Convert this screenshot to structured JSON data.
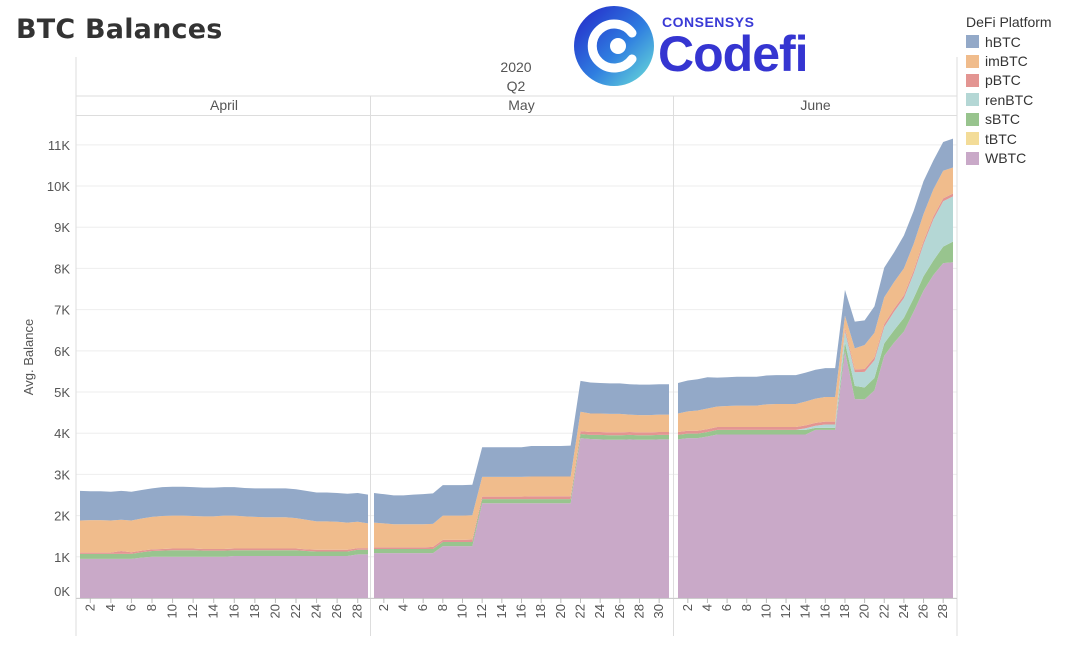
{
  "page": {
    "title": "BTC Balances"
  },
  "logo": {
    "top_text": "CONSENSYS",
    "main_text": "Codefi"
  },
  "colors": {
    "hBTC": "#93a9c8",
    "imBTC": "#f0bc8c",
    "pBTC": "#e39592",
    "renBTC": "#b4d7d5",
    "sBTC": "#98c48e",
    "tBTC": "#f3dc98",
    "WBTC": "#c9a9c8"
  },
  "legend": {
    "title": "DeFi Platform",
    "items": [
      "hBTC",
      "imBTC",
      "pBTC",
      "renBTC",
      "sBTC",
      "tBTC",
      "WBTC"
    ]
  },
  "chart_data": {
    "type": "area",
    "stacked": true,
    "title": "BTC Balances",
    "xlabel": "",
    "ylabel": "Avg. Balance",
    "ylim": [
      0,
      11700
    ],
    "yticks": [
      "0K",
      "1K",
      "2K",
      "3K",
      "4K",
      "5K",
      "6K",
      "7K",
      "8K",
      "9K",
      "10K",
      "11K"
    ],
    "header_year": "2020",
    "header_quarter": "Q2",
    "legend_position": "right",
    "grid": true,
    "stack_order": [
      "WBTC",
      "tBTC",
      "sBTC",
      "renBTC",
      "pBTC",
      "imBTC",
      "hBTC"
    ],
    "panels": [
      {
        "month": "April",
        "days": [
          1,
          2,
          3,
          4,
          5,
          6,
          7,
          8,
          9,
          10,
          11,
          12,
          13,
          14,
          15,
          16,
          17,
          18,
          19,
          20,
          21,
          22,
          23,
          24,
          25,
          26,
          27,
          28,
          29
        ],
        "tick_labels": [
          "2",
          "4",
          "6",
          "8",
          "10",
          "12",
          "14",
          "16",
          "18",
          "20",
          "22",
          "24",
          "26",
          "28"
        ],
        "series": [
          {
            "name": "WBTC",
            "values": [
              950,
              950,
              950,
              950,
              950,
              950,
              980,
              1000,
              1000,
              1000,
              1000,
              1000,
              1000,
              1000,
              1000,
              1020,
              1020,
              1020,
              1020,
              1020,
              1020,
              1020,
              1020,
              1020,
              1020,
              1020,
              1020,
              1060,
              1060
            ]
          },
          {
            "name": "tBTC",
            "values": [
              0,
              0,
              0,
              0,
              0,
              0,
              0,
              0,
              0,
              0,
              0,
              0,
              0,
              0,
              0,
              0,
              0,
              0,
              0,
              0,
              0,
              0,
              0,
              0,
              0,
              0,
              0,
              0,
              0
            ]
          },
          {
            "name": "sBTC",
            "values": [
              120,
              120,
              120,
              120,
              120,
              120,
              130,
              140,
              150,
              160,
              160,
              160,
              150,
              150,
              150,
              140,
              140,
              140,
              140,
              140,
              140,
              140,
              120,
              110,
              110,
              110,
              110,
              110,
              110
            ]
          },
          {
            "name": "renBTC",
            "values": [
              0,
              0,
              0,
              0,
              0,
              0,
              0,
              0,
              0,
              0,
              0,
              0,
              0,
              0,
              0,
              0,
              0,
              0,
              0,
              0,
              0,
              0,
              0,
              0,
              0,
              0,
              0,
              0,
              0
            ]
          },
          {
            "name": "pBTC",
            "values": [
              30,
              30,
              30,
              30,
              70,
              40,
              40,
              40,
              40,
              40,
              40,
              40,
              40,
              40,
              40,
              40,
              40,
              40,
              40,
              40,
              40,
              40,
              40,
              40,
              40,
              40,
              40,
              40,
              40
            ]
          },
          {
            "name": "imBTC",
            "values": [
              780,
              790,
              790,
              780,
              760,
              770,
              780,
              790,
              800,
              800,
              800,
              790,
              790,
              790,
              810,
              800,
              780,
              770,
              760,
              760,
              760,
              740,
              720,
              690,
              690,
              680,
              660,
              640,
              600
            ]
          },
          {
            "name": "hBTC",
            "values": [
              720,
              700,
              700,
              700,
              700,
              700,
              690,
              690,
              700,
              700,
              700,
              700,
              700,
              700,
              690,
              690,
              690,
              690,
              700,
              700,
              700,
              700,
              700,
              700,
              700,
              700,
              700,
              700,
              700
            ]
          }
        ]
      },
      {
        "month": "May",
        "days": [
          1,
          2,
          3,
          4,
          5,
          6,
          7,
          8,
          9,
          10,
          11,
          12,
          13,
          14,
          15,
          16,
          17,
          18,
          19,
          20,
          21,
          22,
          23,
          24,
          25,
          26,
          27,
          28,
          29,
          30,
          31
        ],
        "tick_labels": [
          "2",
          "4",
          "6",
          "8",
          "10",
          "12",
          "14",
          "16",
          "18",
          "20",
          "22",
          "24",
          "26",
          "28",
          "30"
        ],
        "series": [
          {
            "name": "WBTC",
            "values": [
              1090,
              1090,
              1090,
              1090,
              1090,
              1090,
              1090,
              1260,
              1260,
              1260,
              1260,
              2300,
              2300,
              2300,
              2300,
              2300,
              2300,
              2300,
              2300,
              2300,
              2300,
              3880,
              3860,
              3850,
              3840,
              3840,
              3850,
              3840,
              3840,
              3850,
              3850
            ]
          },
          {
            "name": "tBTC",
            "values": [
              0,
              0,
              0,
              0,
              0,
              0,
              0,
              0,
              0,
              0,
              0,
              0,
              0,
              0,
              0,
              0,
              0,
              0,
              0,
              0,
              0,
              0,
              0,
              0,
              0,
              0,
              0,
              0,
              0,
              0,
              0
            ]
          },
          {
            "name": "sBTC",
            "values": [
              100,
              100,
              100,
              100,
              100,
              100,
              100,
              100,
              100,
              100,
              100,
              100,
              100,
              100,
              100,
              100,
              100,
              100,
              100,
              100,
              100,
              100,
              100,
              110,
              110,
              110,
              110,
              110,
              110,
              110,
              110
            ]
          },
          {
            "name": "renBTC",
            "values": [
              0,
              0,
              0,
              0,
              0,
              0,
              0,
              0,
              0,
              0,
              0,
              0,
              0,
              0,
              0,
              0,
              0,
              0,
              0,
              0,
              0,
              0,
              0,
              0,
              0,
              0,
              0,
              0,
              0,
              0,
              0
            ]
          },
          {
            "name": "pBTC",
            "values": [
              40,
              40,
              40,
              40,
              40,
              40,
              50,
              50,
              50,
              50,
              60,
              60,
              60,
              60,
              60,
              60,
              70,
              70,
              70,
              70,
              70,
              70,
              70,
              70,
              70,
              70,
              70,
              70,
              70,
              70,
              70
            ]
          },
          {
            "name": "imBTC",
            "values": [
              600,
              580,
              560,
              560,
              560,
              560,
              560,
              590,
              590,
              590,
              590,
              480,
              480,
              480,
              480,
              480,
              480,
              480,
              480,
              480,
              480,
              470,
              450,
              450,
              450,
              450,
              420,
              420,
              420,
              420,
              420
            ]
          },
          {
            "name": "hBTC",
            "values": [
              720,
              710,
              700,
              700,
              720,
              730,
              740,
              740,
              740,
              740,
              740,
              720,
              720,
              720,
              720,
              720,
              740,
              740,
              740,
              740,
              750,
              750,
              750,
              740,
              740,
              740,
              740,
              740,
              740,
              740,
              740
            ]
          }
        ]
      },
      {
        "month": "June",
        "days": [
          1,
          2,
          3,
          4,
          5,
          6,
          7,
          8,
          9,
          10,
          11,
          12,
          13,
          14,
          15,
          16,
          17,
          18,
          19,
          20,
          21,
          22,
          23,
          24,
          25,
          26,
          27,
          28,
          29
        ],
        "tick_labels": [
          "2",
          "4",
          "6",
          "8",
          "10",
          "12",
          "14",
          "16",
          "18",
          "20",
          "22",
          "24",
          "26",
          "28"
        ],
        "series": [
          {
            "name": "WBTC",
            "values": [
              3850,
              3880,
              3880,
              3920,
              3970,
              3970,
              3970,
              3970,
              3970,
              3970,
              3970,
              3970,
              3970,
              3970,
              4080,
              4080,
              4080,
              6000,
              4830,
              4820,
              5040,
              5880,
              6200,
              6470,
              6950,
              7460,
              7840,
              8130,
              8150
            ]
          },
          {
            "name": "tBTC",
            "values": [
              0,
              0,
              0,
              0,
              0,
              0,
              0,
              0,
              0,
              0,
              0,
              0,
              0,
              0,
              0,
              0,
              0,
              0,
              0,
              0,
              0,
              0,
              0,
              0,
              0,
              0,
              0,
              0,
              0
            ]
          },
          {
            "name": "sBTC",
            "values": [
              110,
              110,
              110,
              110,
              110,
              110,
              110,
              110,
              110,
              110,
              110,
              110,
              110,
              110,
              50,
              50,
              50,
              200,
              320,
              290,
              300,
              300,
              300,
              330,
              330,
              350,
              350,
              400,
              500
            ]
          },
          {
            "name": "renBTC",
            "values": [
              0,
              0,
              0,
              0,
              0,
              0,
              0,
              0,
              0,
              0,
              0,
              0,
              0,
              40,
              50,
              80,
              80,
              280,
              330,
              380,
              430,
              400,
              450,
              480,
              600,
              780,
              1000,
              1100,
              1100
            ]
          },
          {
            "name": "pBTC",
            "values": [
              70,
              70,
              70,
              70,
              70,
              70,
              70,
              70,
              70,
              70,
              70,
              70,
              70,
              70,
              70,
              70,
              70,
              70,
              70,
              70,
              70,
              70,
              70,
              70,
              70,
              70,
              70,
              70,
              70
            ]
          },
          {
            "name": "imBTC",
            "values": [
              450,
              470,
              490,
              500,
              500,
              510,
              520,
              520,
              520,
              550,
              560,
              560,
              560,
              580,
              590,
              600,
              600,
              300,
              510,
              580,
              600,
              650,
              650,
              650,
              650,
              660,
              660,
              670,
              630
            ]
          },
          {
            "name": "hBTC",
            "values": [
              740,
              750,
              760,
              760,
              700,
              700,
              700,
              700,
              700,
              700,
              700,
              700,
              700,
              700,
              700,
              700,
              700,
              630,
              650,
              600,
              640,
              720,
              720,
              800,
              800,
              800,
              700,
              700,
              700
            ]
          }
        ]
      }
    ]
  }
}
